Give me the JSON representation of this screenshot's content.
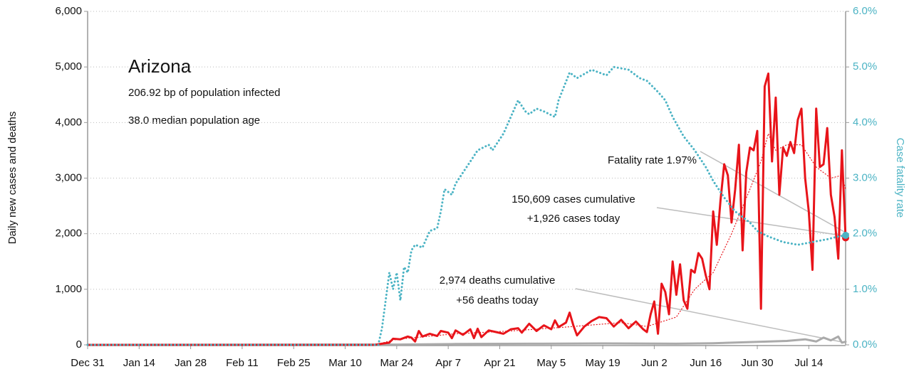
{
  "chart_data": {
    "type": "line",
    "title": "Arizona",
    "subtitle": [
      "206.92 bp of population infected",
      "38.0 median population age"
    ],
    "y_label": "Daily new cases and deaths",
    "y2_label": "Case fatality rate",
    "annotations": [
      "Fatality rate 1.97%",
      "150,609 cases cumulative",
      "+1,926 cases today",
      "2,974 deaths cumulative",
      "+56 deaths today"
    ],
    "xlim": [
      0,
      206
    ],
    "xticks": [
      {
        "value": 0,
        "label": "Dec 31"
      },
      {
        "value": 14,
        "label": "Jan 14"
      },
      {
        "value": 28,
        "label": "Jan 28"
      },
      {
        "value": 42,
        "label": "Feb 11"
      },
      {
        "value": 56,
        "label": "Feb 25"
      },
      {
        "value": 70,
        "label": "Mar 10"
      },
      {
        "value": 84,
        "label": "Mar 24"
      },
      {
        "value": 98,
        "label": "Apr 7"
      },
      {
        "value": 112,
        "label": "Apr 21"
      },
      {
        "value": 126,
        "label": "May 5"
      },
      {
        "value": 140,
        "label": "May 19"
      },
      {
        "value": 154,
        "label": "Jun 2"
      },
      {
        "value": 168,
        "label": "Jun 16"
      },
      {
        "value": 182,
        "label": "Jun 30"
      },
      {
        "value": 196,
        "label": "Jul 14"
      }
    ],
    "ylim": [
      0,
      6000
    ],
    "yticks": [
      0,
      {
        "value": 1000,
        "label": "1,000"
      },
      {
        "value": 2000,
        "label": "2,000"
      },
      {
        "value": 3000,
        "label": "3,000"
      },
      {
        "value": 4000,
        "label": "4,000"
      },
      {
        "value": 5000,
        "label": "5,000"
      },
      {
        "value": 6000,
        "label": "6,000"
      }
    ],
    "y2lim": [
      0,
      6
    ],
    "y2ticks": [
      {
        "value": 0,
        "label": "0.0%"
      },
      {
        "value": 1,
        "label": "1.0%"
      },
      {
        "value": 2,
        "label": "2.0%"
      },
      {
        "value": 3,
        "label": "3.0%"
      },
      {
        "value": 4,
        "label": "4.0%"
      },
      {
        "value": 5,
        "label": "5.0%"
      },
      {
        "value": 6,
        "label": "6.0%"
      }
    ],
    "y2_color": "#4bb3c4",
    "grid": true,
    "series": [
      {
        "color": "#aaaaaa",
        "style": "solid",
        "x": [
          0,
          84,
          100,
          120,
          140,
          160,
          170,
          180,
          190,
          195,
          198,
          200,
          202,
          204,
          205,
          206
        ],
        "values": [
          0,
          5,
          15,
          20,
          25,
          20,
          30,
          50,
          70,
          100,
          60,
          130,
          80,
          150,
          40,
          56
        ]
      },
      {
        "color": "#e8141a",
        "style": "dotted",
        "x": [
          0,
          78,
          84,
          100,
          115,
          130,
          145,
          152,
          160,
          165,
          170,
          175,
          180,
          183,
          185,
          187,
          190,
          194,
          198,
          202,
          205,
          206
        ],
        "values": [
          0,
          0,
          100,
          200,
          250,
          320,
          400,
          330,
          500,
          1000,
          1300,
          2000,
          2800,
          3300,
          3800,
          3500,
          3600,
          3600,
          3200,
          3000,
          3050,
          2800
        ]
      },
      {
        "color": "#e8141a",
        "style": "solid",
        "end_marker": true,
        "x": [
          0,
          78,
          80,
          82,
          83,
          85,
          87,
          88,
          89,
          90,
          91,
          93,
          95,
          96,
          98,
          99,
          100,
          102,
          104,
          105,
          106,
          107,
          109,
          111,
          113,
          115,
          117,
          118,
          120,
          122,
          124,
          126,
          127,
          128,
          130,
          131,
          132,
          133,
          135,
          137,
          139,
          141,
          143,
          145,
          147,
          149,
          151,
          152,
          153,
          154,
          155,
          156,
          157,
          158,
          159,
          160,
          161,
          162,
          163,
          164,
          165,
          166,
          167,
          168,
          169,
          170,
          171,
          172,
          173,
          174,
          175,
          176,
          177,
          178,
          179,
          180,
          181,
          182,
          183,
          184,
          185,
          186,
          187,
          188,
          189,
          190,
          191,
          192,
          193,
          194,
          195,
          196,
          197,
          198,
          199,
          200,
          201,
          202,
          203,
          204,
          205,
          206
        ],
        "values": [
          0,
          0,
          20,
          40,
          110,
          100,
          150,
          130,
          60,
          250,
          150,
          200,
          160,
          250,
          220,
          120,
          260,
          180,
          280,
          120,
          290,
          140,
          260,
          230,
          200,
          280,
          300,
          220,
          380,
          250,
          350,
          280,
          440,
          320,
          400,
          580,
          350,
          170,
          330,
          430,
          500,
          480,
          330,
          450,
          300,
          420,
          280,
          230,
          550,
          780,
          200,
          1100,
          950,
          550,
          1500,
          900,
          1450,
          800,
          650,
          1350,
          1300,
          1650,
          1550,
          1250,
          1000,
          2400,
          1800,
          2600,
          3250,
          3050,
          2200,
          2800,
          3600,
          1700,
          3100,
          3550,
          3500,
          3850,
          650,
          4650,
          4880,
          3300,
          4450,
          2700,
          3550,
          3400,
          3650,
          3450,
          4050,
          4250,
          3000,
          2400,
          1350,
          4250,
          3200,
          3250,
          3900,
          2700,
          2300,
          1550,
          3500,
          1926
        ]
      },
      {
        "color": "#4bb3c4",
        "style": "dotted",
        "axis": "y2",
        "end_marker": true,
        "x": [
          0,
          79,
          80,
          82,
          83,
          84,
          85,
          86,
          87,
          88,
          89,
          91,
          93,
          95,
          96,
          97,
          99,
          100,
          102,
          104,
          106,
          109,
          110,
          113,
          115,
          117,
          119,
          120,
          122,
          124,
          127,
          128,
          131,
          133,
          137,
          141,
          143,
          147,
          150,
          152,
          155,
          157,
          159,
          162,
          165,
          168,
          170,
          173,
          176,
          180,
          182,
          185,
          189,
          193,
          197,
          201,
          204,
          206
        ],
        "values": [
          0,
          0,
          0.3,
          1.3,
          1.0,
          1.3,
          0.8,
          1.4,
          1.3,
          1.7,
          1.8,
          1.75,
          2.05,
          2.1,
          2.4,
          2.8,
          2.7,
          2.9,
          3.1,
          3.3,
          3.5,
          3.6,
          3.5,
          3.8,
          4.1,
          4.4,
          4.2,
          4.15,
          4.25,
          4.2,
          4.1,
          4.4,
          4.9,
          4.8,
          4.95,
          4.85,
          5.0,
          4.95,
          4.8,
          4.75,
          4.55,
          4.4,
          4.1,
          3.75,
          3.5,
          3.2,
          2.95,
          2.65,
          2.4,
          2.2,
          2.05,
          1.95,
          1.85,
          1.8,
          1.85,
          1.9,
          1.95,
          1.97
        ]
      }
    ]
  }
}
